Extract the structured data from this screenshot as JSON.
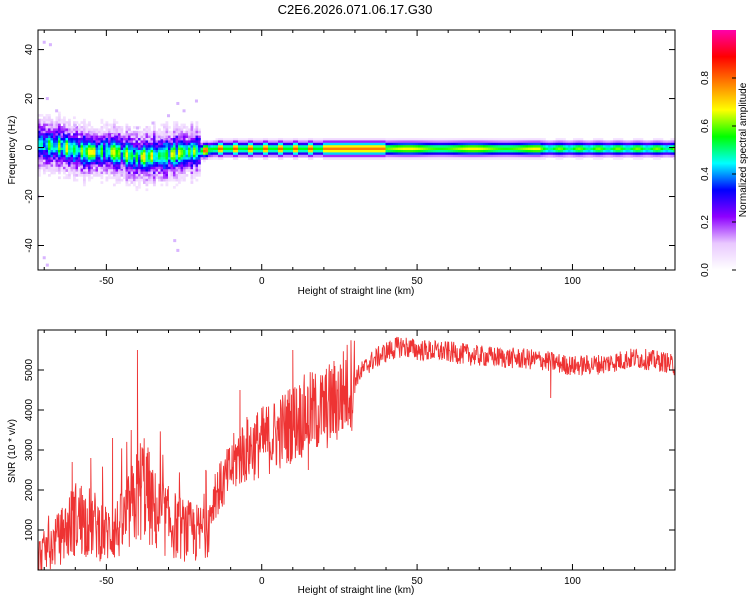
{
  "title": "C2E6.2026.071.06.17.G30",
  "chart_data": [
    {
      "type": "heatmap",
      "xlabel": "Height of straight line (km)",
      "ylabel": "Frequency (Hz)",
      "xlim": [
        -72,
        133
      ],
      "ylim": [
        -50,
        48
      ],
      "xticks": [
        -50,
        0,
        50,
        100
      ],
      "yticks": [
        40,
        20,
        0,
        -20,
        -40
      ],
      "xtick_labels": [
        "-50",
        "0",
        "50",
        "100"
      ],
      "ytick_labels": [
        "40",
        "20",
        "0",
        "-20",
        "-40"
      ],
      "colorbar": {
        "label": "Normalized spectral amplitude",
        "range": [
          0.0,
          1.0
        ],
        "ticks": [
          0.0,
          0.2,
          0.4,
          0.6,
          0.8
        ],
        "tick_labels": [
          "0.0",
          "0.2",
          "0.4",
          "0.6",
          "0.8"
        ],
        "colormap": [
          "#ffffff",
          "#e9c8ff",
          "#8e00ff",
          "#0000ff",
          "#00ffff",
          "#00ff00",
          "#ffff00",
          "#ff8000",
          "#ff0000",
          "#ff00aa"
        ]
      },
      "center_frequency_track": {
        "x": [
          -72,
          -65,
          -60,
          -55,
          -50,
          -45,
          -40,
          -35,
          -30,
          -25,
          -20,
          -15,
          -10,
          -5,
          0,
          10,
          20,
          40,
          60,
          80,
          100,
          120,
          133
        ],
        "y": [
          1.5,
          0.5,
          -1.0,
          -2.0,
          -1.5,
          -2.5,
          -4.0,
          -3.5,
          -3.0,
          -2.0,
          -1.5,
          -0.5,
          -0.5,
          -0.5,
          -0.5,
          -0.5,
          -0.5,
          -0.5,
          -0.5,
          -0.5,
          -0.5,
          -0.5,
          -0.5
        ]
      }
    },
    {
      "type": "line",
      "series": [
        {
          "name": "SNR",
          "color": "#ee3333"
        }
      ],
      "xlabel": "Height of straight line (km)",
      "ylabel": "SNR (10 * v/v)",
      "xlim": [
        -72,
        133
      ],
      "ylim": [
        0,
        6000
      ],
      "xticks": [
        -50,
        0,
        50,
        100
      ],
      "yticks": [
        1000,
        2000,
        3000,
        4000,
        5000
      ],
      "xtick_labels": [
        "-50",
        "0",
        "50",
        "100"
      ],
      "ytick_labels": [
        "1000",
        "2000",
        "3000",
        "4000",
        "5000"
      ],
      "trend": {
        "x": [
          -72,
          -65,
          -60,
          -55,
          -50,
          -45,
          -42,
          -38,
          -35,
          -30,
          -25,
          -20,
          -17,
          -15,
          -12,
          -8,
          -5,
          0,
          5,
          10,
          15,
          20,
          25,
          30,
          35,
          40,
          45,
          50,
          60,
          70,
          80,
          90,
          100,
          110,
          120,
          130,
          133
        ],
        "y": [
          350,
          800,
          1300,
          1200,
          900,
          1100,
          1500,
          2200,
          1500,
          1200,
          1000,
          900,
          1300,
          1900,
          2200,
          2800,
          3000,
          3200,
          3400,
          3700,
          3900,
          4000,
          4300,
          4800,
          5200,
          5450,
          5600,
          5500,
          5450,
          5350,
          5300,
          5250,
          5100,
          5150,
          5300,
          5200,
          5100
        ]
      },
      "spikes": [
        {
          "x": -61,
          "y": 2700
        },
        {
          "x": -55,
          "y": 2800
        },
        {
          "x": -48,
          "y": 3300
        },
        {
          "x": -42,
          "y": 3500
        },
        {
          "x": -40,
          "y": 5500
        },
        {
          "x": -18,
          "y": 2500
        },
        {
          "x": -7,
          "y": 4500
        },
        {
          "x": 10,
          "y": 5500
        },
        {
          "x": 43,
          "y": 5800
        },
        {
          "x": 47,
          "y": 5500
        }
      ],
      "dips": [
        {
          "x": 93,
          "y": 4300
        },
        {
          "x": -15,
          "y": 2400
        },
        {
          "x": 15,
          "y": 2500
        }
      ]
    }
  ]
}
